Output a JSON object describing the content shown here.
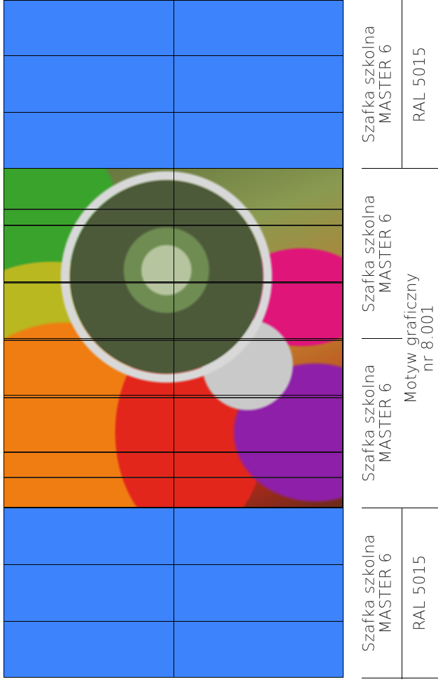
{
  "cabinets": [
    {
      "name": "Szafka szkolna",
      "model": "MASTER 6",
      "finish": "RAL 5015"
    },
    {
      "name": "Szafka szkolna",
      "model": "MASTER 6"
    },
    {
      "name": "Szafka szkolna",
      "model": "MASTER 6"
    },
    {
      "name": "Szafka szkolna",
      "model": "MASTER 6",
      "finish": "RAL 5015"
    }
  ],
  "graphic_motif": {
    "line1": "Motyw graficzny",
    "line2": "nr 8.001"
  },
  "colors": {
    "panel_blue": "#3d83fb",
    "lines": "#000000"
  }
}
